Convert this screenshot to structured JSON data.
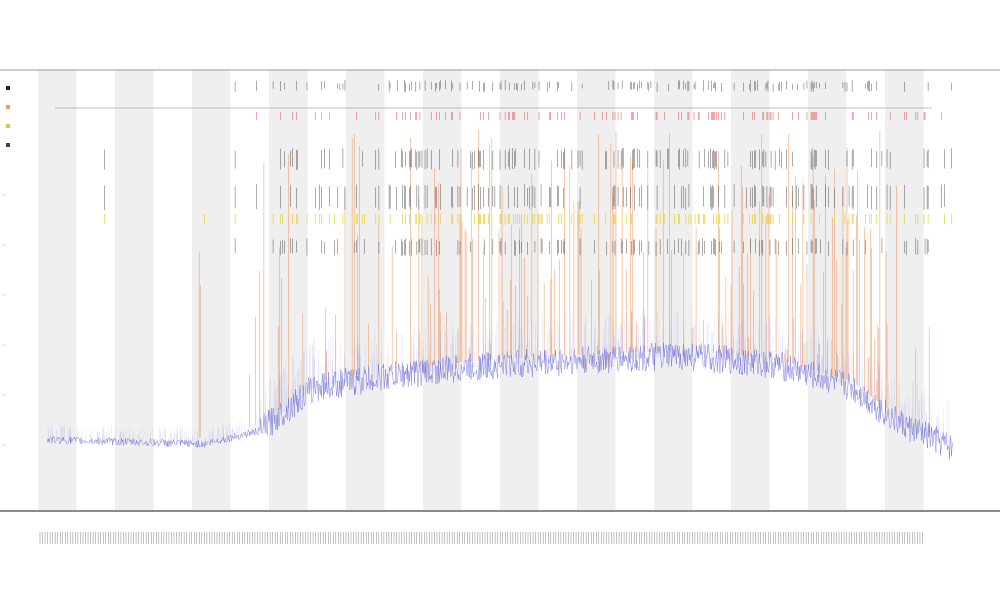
{
  "titles": [],
  "chart_data": {
    "type": "line",
    "title": "",
    "xlabel": "",
    "ylabel": "",
    "grid": false,
    "ylim": [
      0,
      1
    ],
    "band_count": 24,
    "x_tick_count": 350,
    "legend": {
      "placement": "top-left",
      "entries": [
        {
          "name": "",
          "color": "#222222"
        },
        {
          "name": "",
          "color": "#e0a070"
        },
        {
          "name": "",
          "color": "#d8c840"
        },
        {
          "name": "",
          "color": "#444444"
        }
      ]
    },
    "series": [
      {
        "color": "#6a6ad8",
        "start": 0.01,
        "end": 0.99,
        "profile": [
          [
            0.0,
            0.16
          ],
          [
            0.18,
            0.15
          ],
          [
            0.24,
            0.18
          ],
          [
            0.3,
            0.28
          ],
          [
            0.4,
            0.31
          ],
          [
            0.5,
            0.33
          ],
          [
            0.7,
            0.35
          ],
          [
            0.8,
            0.33
          ],
          [
            0.88,
            0.28
          ],
          [
            0.93,
            0.2
          ],
          [
            0.99,
            0.14
          ]
        ]
      },
      {
        "color": "#f08040",
        "type": "spikes"
      },
      {
        "color": "#e8d030",
        "type": "ticks"
      },
      {
        "color": "#222222",
        "type": "ticks"
      },
      {
        "color": "#e05050",
        "type": "ticks"
      }
    ],
    "colors": {
      "band": "#efefef",
      "line": "#6a6ad8",
      "spike": "#f08040",
      "tick_dark": "#222222",
      "tick_yellow": "#e8d030",
      "tick_red": "#e05050",
      "axis": "#444444"
    }
  }
}
